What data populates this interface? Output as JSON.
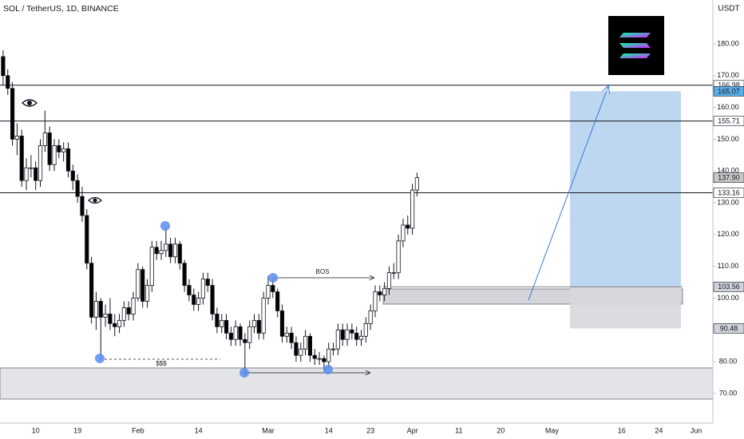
{
  "chart_data": {
    "type": "candlestick",
    "title": "SOL / TetherUS, 1D, BINANCE",
    "currency": "USDT",
    "categories": [
      null,
      null,
      null,
      null,
      null,
      null,
      null,
      "10",
      null,
      null,
      null,
      null,
      null,
      null,
      null,
      null,
      "19",
      null,
      null,
      null,
      null,
      null,
      null,
      null,
      null,
      null,
      null,
      null,
      null,
      "Feb",
      null,
      null,
      null,
      null,
      null,
      null,
      null,
      null,
      null,
      null,
      null,
      null,
      "14",
      null,
      null,
      null,
      null,
      null,
      null,
      null,
      null,
      null,
      null,
      null,
      null,
      null,
      null,
      "Mar",
      null,
      null,
      null,
      null,
      null,
      null,
      null,
      null,
      null,
      null,
      null,
      null,
      "14",
      null,
      null,
      null,
      null,
      null,
      null,
      null,
      null,
      "23",
      null,
      null,
      null,
      null,
      null,
      null,
      null,
      null,
      "Apr",
      null,
      null,
      null,
      null,
      null,
      null,
      null,
      null,
      null,
      "11",
      null,
      null,
      null,
      null,
      null,
      null,
      null,
      null,
      "20",
      null,
      null,
      null,
      null,
      null,
      null,
      null,
      null,
      null,
      null,
      "May",
      null,
      null,
      null,
      null,
      null,
      null,
      null,
      null,
      null,
      null,
      null,
      null,
      null,
      null,
      "16",
      null,
      null,
      null,
      null,
      null,
      null,
      null,
      "24",
      null,
      null,
      null,
      null,
      null,
      null,
      null,
      "Jun",
      null,
      null,
      null,
      null
    ],
    "open": [
      176,
      170,
      166,
      150,
      151,
      137,
      141,
      141,
      137,
      148,
      152,
      142,
      148,
      146,
      147,
      140,
      137,
      132,
      126,
      111,
      94,
      99,
      94,
      95,
      92,
      91,
      93,
      97,
      95,
      100,
      109,
      99,
      104,
      116,
      114,
      115,
      117,
      113,
      117,
      111,
      104,
      101,
      98,
      100,
      106,
      104,
      95,
      91,
      93,
      89,
      87,
      91,
      87,
      86,
      91,
      93,
      89,
      100,
      104,
      102,
      96,
      88,
      89,
      86,
      82,
      84,
      88,
      82,
      81,
      81,
      80,
      84,
      84,
      90,
      87,
      90,
      89,
      87,
      88,
      92,
      96,
      102,
      101,
      103,
      108,
      108,
      118,
      123,
      122,
      134,
      null,
      null,
      null,
      null,
      null,
      null,
      null,
      null,
      null,
      null,
      null,
      null,
      null,
      null,
      null,
      null,
      null,
      null,
      null,
      null,
      null,
      null,
      null,
      null,
      null,
      null,
      null,
      null,
      null,
      null,
      null,
      null,
      null,
      null,
      null,
      null,
      null,
      null,
      null,
      null,
      null,
      null,
      null,
      null,
      null,
      null,
      null,
      null,
      null,
      null,
      null,
      null,
      null,
      null,
      null,
      null,
      null,
      null,
      null,
      null,
      null,
      null,
      null,
      null
    ],
    "high": [
      178,
      172,
      168,
      155,
      153,
      144,
      145,
      143,
      150,
      159,
      154,
      150,
      150,
      149,
      149,
      142,
      139,
      135,
      128,
      113,
      102,
      100,
      98,
      100,
      95,
      95,
      99,
      99,
      102,
      111,
      110,
      106,
      118,
      118,
      118,
      122,
      119,
      119,
      118,
      112,
      106,
      103,
      102,
      108,
      108,
      106,
      97,
      95,
      95,
      91,
      93,
      92,
      89,
      93,
      95,
      95,
      102,
      107,
      106,
      103,
      98,
      91,
      91,
      88,
      86,
      90,
      89,
      84,
      83,
      82,
      86,
      86,
      92,
      92,
      92,
      92,
      91,
      90,
      94,
      98,
      104,
      104,
      105,
      110,
      111,
      120,
      125,
      126,
      136,
      139.5,
      null,
      null,
      null,
      null,
      null,
      null,
      null,
      null,
      null,
      null,
      null,
      null,
      null,
      null,
      null,
      null,
      null,
      null,
      null,
      null,
      null,
      null,
      null,
      null,
      null,
      null,
      null,
      null,
      null,
      null,
      null,
      null,
      null,
      null,
      null,
      null,
      null,
      null,
      null,
      null,
      null,
      null,
      null,
      null,
      null,
      null,
      null,
      null,
      null,
      null,
      null,
      null,
      null,
      null,
      null,
      null,
      null,
      null,
      null,
      null,
      null,
      null,
      null,
      null
    ],
    "low": [
      167,
      164,
      148,
      145,
      135,
      134,
      138,
      134,
      135,
      146,
      140,
      140,
      144,
      143,
      138,
      134,
      130,
      124,
      109,
      92,
      90,
      81,
      91,
      90,
      88,
      89,
      91,
      93,
      93,
      99,
      97,
      97,
      102,
      112,
      112,
      113,
      111,
      111,
      109,
      102,
      99,
      96,
      96,
      98,
      102,
      93,
      89,
      89,
      87,
      85,
      85,
      85,
      76,
      84,
      89,
      87,
      87,
      98,
      100,
      94,
      86,
      86,
      84,
      80,
      80,
      82,
      80,
      79,
      79,
      77,
      78,
      82,
      82,
      85,
      85,
      87,
      85,
      85,
      86,
      90,
      94,
      99,
      99,
      101,
      106,
      106,
      116,
      120,
      120,
      132,
      null,
      null,
      null,
      null,
      null,
      null,
      null,
      null,
      null,
      null,
      null,
      null,
      null,
      null,
      null,
      null,
      null,
      null,
      null,
      null,
      null,
      null,
      null,
      null,
      null,
      null,
      null,
      null,
      null,
      null,
      null,
      null,
      null,
      null,
      null,
      null,
      null,
      null,
      null,
      null,
      null,
      null,
      null,
      null,
      null,
      null,
      null,
      null,
      null,
      null,
      null,
      null,
      null,
      null,
      null,
      null,
      null,
      null,
      null,
      null,
      null,
      null,
      null,
      null
    ],
    "close": [
      170,
      166,
      150,
      151,
      137,
      141,
      141,
      137,
      148,
      152,
      142,
      148,
      146,
      147,
      140,
      137,
      132,
      126,
      111,
      94,
      99,
      94,
      95,
      92,
      91,
      93,
      97,
      95,
      100,
      109,
      99,
      104,
      116,
      114,
      115,
      117,
      113,
      117,
      111,
      104,
      101,
      98,
      100,
      106,
      104,
      95,
      91,
      93,
      89,
      87,
      91,
      87,
      86,
      91,
      93,
      89,
      100,
      104,
      102,
      96,
      88,
      89,
      86,
      82,
      84,
      88,
      82,
      81,
      81,
      80,
      84,
      84,
      90,
      87,
      90,
      89,
      87,
      88,
      92,
      96,
      102,
      101,
      103,
      108,
      108,
      118,
      123,
      122,
      134,
      137.9,
      null,
      null,
      null,
      null,
      null,
      null,
      null,
      null,
      null,
      null,
      null,
      null,
      null,
      null,
      null,
      null,
      null,
      null,
      null,
      null,
      null,
      null,
      null,
      null,
      null,
      null,
      null,
      null,
      null,
      null,
      null,
      null,
      null,
      null,
      null,
      null,
      null,
      null,
      null,
      null,
      null,
      null,
      null,
      null,
      null,
      null,
      null,
      null,
      null,
      null,
      null,
      null,
      null,
      null,
      null,
      null,
      null,
      null,
      null,
      null,
      null,
      null,
      null,
      null
    ],
    "up_color": "#ffffff",
    "down_color": "#000000",
    "ylim": [
      60.7,
      193.8
    ],
    "yticks": [
      {
        "value": 70,
        "label": "70.00"
      },
      {
        "value": 80,
        "label": "80.00"
      },
      {
        "value": 100,
        "label": "100.00"
      },
      {
        "value": 110,
        "label": "110.00"
      },
      {
        "value": 120,
        "label": "120.00"
      },
      {
        "value": 130,
        "label": "130.00"
      },
      {
        "value": 140,
        "label": "140.00"
      },
      {
        "value": 150,
        "label": "150.00"
      },
      {
        "value": 160,
        "label": "160.00"
      },
      {
        "value": 170,
        "label": "170.00"
      },
      {
        "value": 180,
        "label": "180.00"
      }
    ],
    "levels": [
      166.98,
      155.71,
      133.16
    ],
    "price_labels": [
      {
        "value": 166.98,
        "label": "166.98",
        "color": "#ffffff"
      },
      {
        "value": 165.07,
        "label": "165.07",
        "color": "#5aaee8"
      },
      {
        "value": 155.71,
        "label": "155.71",
        "color": "#ffffff"
      },
      {
        "value": 137.9,
        "label": "137.90",
        "color": "#c8c8c8"
      },
      {
        "value": 133.16,
        "label": "133.16",
        "color": "#ffffff"
      },
      {
        "value": 103.56,
        "label": "103.56",
        "color": "#d0d3da"
      },
      {
        "value": 90.48,
        "label": "90.48",
        "color": "#d0d3da"
      }
    ],
    "annotations": {
      "bos": "BOS",
      "liquidity": "$$$"
    }
  }
}
